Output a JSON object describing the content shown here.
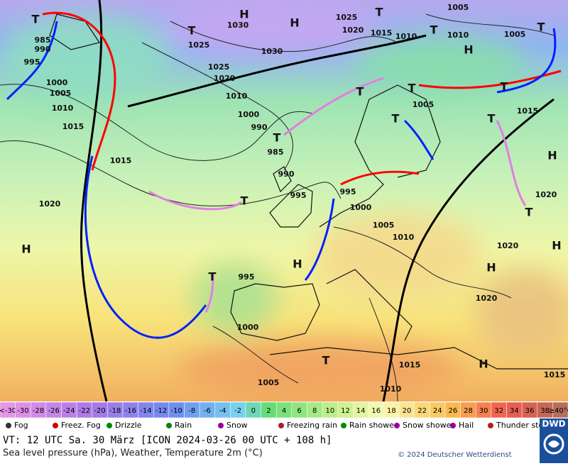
{
  "map": {
    "pressure_labels": [
      "985",
      "990",
      "995",
      "1000",
      "1005",
      "1010",
      "1015",
      "1015",
      "1020",
      "1025",
      "1030",
      "1030",
      "1025",
      "1020",
      "1010",
      "1000",
      "990",
      "985",
      "990",
      "995",
      "995",
      "1000",
      "1005",
      "1010",
      "1025",
      "1020",
      "1015",
      "1010",
      "1005",
      "1010",
      "1005",
      "1005",
      "1015",
      "1020",
      "1020",
      "1020",
      "995",
      "1000",
      "1015",
      "1005",
      "1010",
      "1015"
    ],
    "centers": [
      "T",
      "H",
      "T",
      "H",
      "T",
      "T",
      "H",
      "T",
      "T",
      "T",
      "T",
      "T",
      "T",
      "T",
      "H",
      "T",
      "H",
      "T",
      "H",
      "T",
      "H",
      "H",
      "T",
      "H"
    ]
  },
  "temperature_scale": {
    "labels": [
      "<-30",
      "-30",
      "-28",
      "-26",
      "-24",
      "-22",
      "-20",
      "-18",
      "-16",
      "-14",
      "-12",
      "-10",
      "-8",
      "-6",
      "-4",
      "-2",
      "0",
      "2",
      "4",
      "6",
      "8",
      "10",
      "12",
      "14",
      "16",
      "18",
      "20",
      "22",
      "24",
      "26",
      "28",
      "30",
      "32",
      "34",
      "36",
      "38",
      "≥40°C"
    ]
  },
  "legend": [
    "Fog",
    "Freez. Fog",
    "Drizzle",
    "Rain",
    "Snow",
    "Freezing rain",
    "Rain shower",
    "Snow shower",
    "Hail",
    "Thunder storm"
  ],
  "footer": {
    "valid_time": "VT: 12 UTC Sa.  30 März [ICON 2024-03-26  00 UTC + 108 h]",
    "description": "Sea level pressure (hPa), Weather, Temperature 2m (°C)",
    "copyright": "© 2024 Deutscher Wetterdienst",
    "logo": "DWD"
  }
}
